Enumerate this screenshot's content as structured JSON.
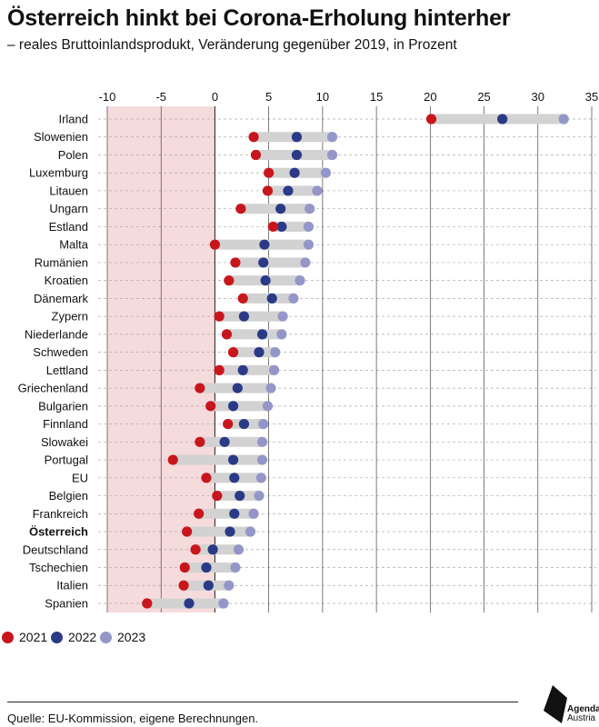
{
  "title": "Österreich hinkt bei Corona-Erholung hinterher",
  "subtitle": "– reales Bruttoinlandsprodukt, Veränderung gegenüber 2019, in Prozent",
  "source": "Quelle: EU-Kommission, eigene Berechnungen.",
  "logo": {
    "line1": "Agenda",
    "line2": "Austria"
  },
  "colors": {
    "2021": "#c8161d",
    "2022": "#2a3a87",
    "2023": "#9596c8",
    "range_bar": "#d2d2d2",
    "negative_area": "#f6dbdc",
    "grid": "#aaaaaa"
  },
  "legend": [
    {
      "label": "2021",
      "color": "#c8161d"
    },
    {
      "label": "2022",
      "color": "#2a3a87"
    },
    {
      "label": "2023",
      "color": "#9596c8"
    }
  ],
  "chart_data": {
    "type": "dot-range",
    "title": "Österreich hinkt bei Corona-Erholung hinterher",
    "subtitle": "– reales Bruttoinlandsprodukt, Veränderung gegenüber 2019, in Prozent",
    "xlim": [
      -10,
      35
    ],
    "xticks": [
      -10,
      -5,
      0,
      5,
      10,
      15,
      20,
      25,
      30,
      35
    ],
    "axis_position": "top",
    "negative_area_shaded": true,
    "grid": true,
    "legend_position": "bottom-left",
    "highlight": "Österreich",
    "categories": [
      "Irland",
      "Slowenien",
      "Polen",
      "Luxemburg",
      "Litauen",
      "Ungarn",
      "Estland",
      "Malta",
      "Rumänien",
      "Kroatien",
      "Dänemark",
      "Zypern",
      "Niederlande",
      "Schweden",
      "Lettland",
      "Griechenland",
      "Bulgarien",
      "Finnland",
      "Slowakei",
      "Portugal",
      "EU",
      "Belgien",
      "Frankreich",
      "Österreich",
      "Deutschland",
      "Tschechien",
      "Italien",
      "Spanien"
    ],
    "series": [
      {
        "name": "2021",
        "values": [
          20.1,
          3.6,
          3.8,
          5.0,
          4.9,
          2.4,
          5.4,
          0.0,
          1.9,
          1.3,
          2.6,
          0.4,
          1.1,
          1.7,
          0.4,
          -1.4,
          -0.4,
          1.2,
          -1.4,
          -3.9,
          -0.8,
          0.2,
          -1.5,
          -2.6,
          -1.8,
          -2.8,
          -2.9,
          -6.3
        ]
      },
      {
        "name": "2022",
        "values": [
          26.7,
          7.6,
          7.6,
          7.4,
          6.8,
          6.1,
          6.2,
          4.6,
          4.5,
          4.7,
          5.3,
          2.7,
          4.4,
          4.1,
          2.6,
          2.1,
          1.7,
          2.7,
          0.9,
          1.7,
          1.8,
          2.3,
          1.8,
          1.4,
          -0.2,
          -0.8,
          -0.6,
          -2.4
        ]
      },
      {
        "name": "2023",
        "values": [
          32.4,
          10.9,
          10.9,
          10.3,
          9.5,
          8.8,
          8.7,
          8.7,
          8.4,
          7.9,
          7.3,
          6.3,
          6.2,
          5.6,
          5.5,
          5.2,
          4.9,
          4.5,
          4.4,
          4.4,
          4.3,
          4.1,
          3.6,
          3.3,
          2.2,
          1.9,
          1.3,
          0.8
        ]
      }
    ]
  }
}
